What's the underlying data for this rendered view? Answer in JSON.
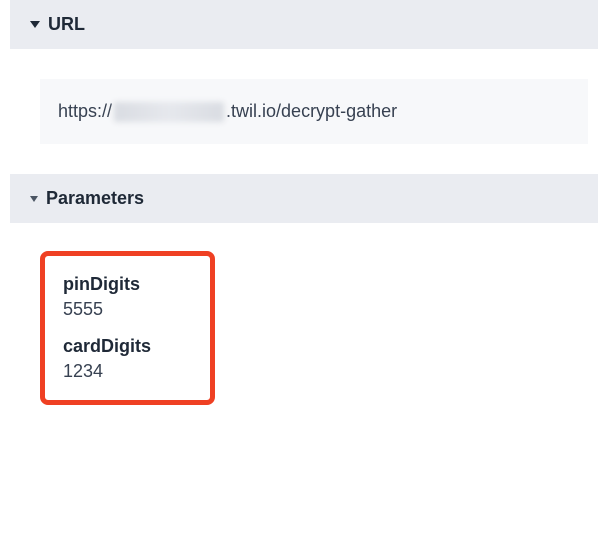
{
  "url_section": {
    "title": "URL",
    "url_prefix": "https://",
    "url_suffix": ".twil.io/decrypt-gather"
  },
  "params_section": {
    "title": "Parameters",
    "items": [
      {
        "key": "pinDigits",
        "value": "5555"
      },
      {
        "key": "cardDigits",
        "value": "1234"
      }
    ]
  },
  "colors": {
    "header_bg": "#eaecf1",
    "url_box_bg": "#f7f8fa",
    "highlight_border": "#ef4023",
    "text_primary": "#1f2937",
    "text_secondary": "#374151"
  }
}
